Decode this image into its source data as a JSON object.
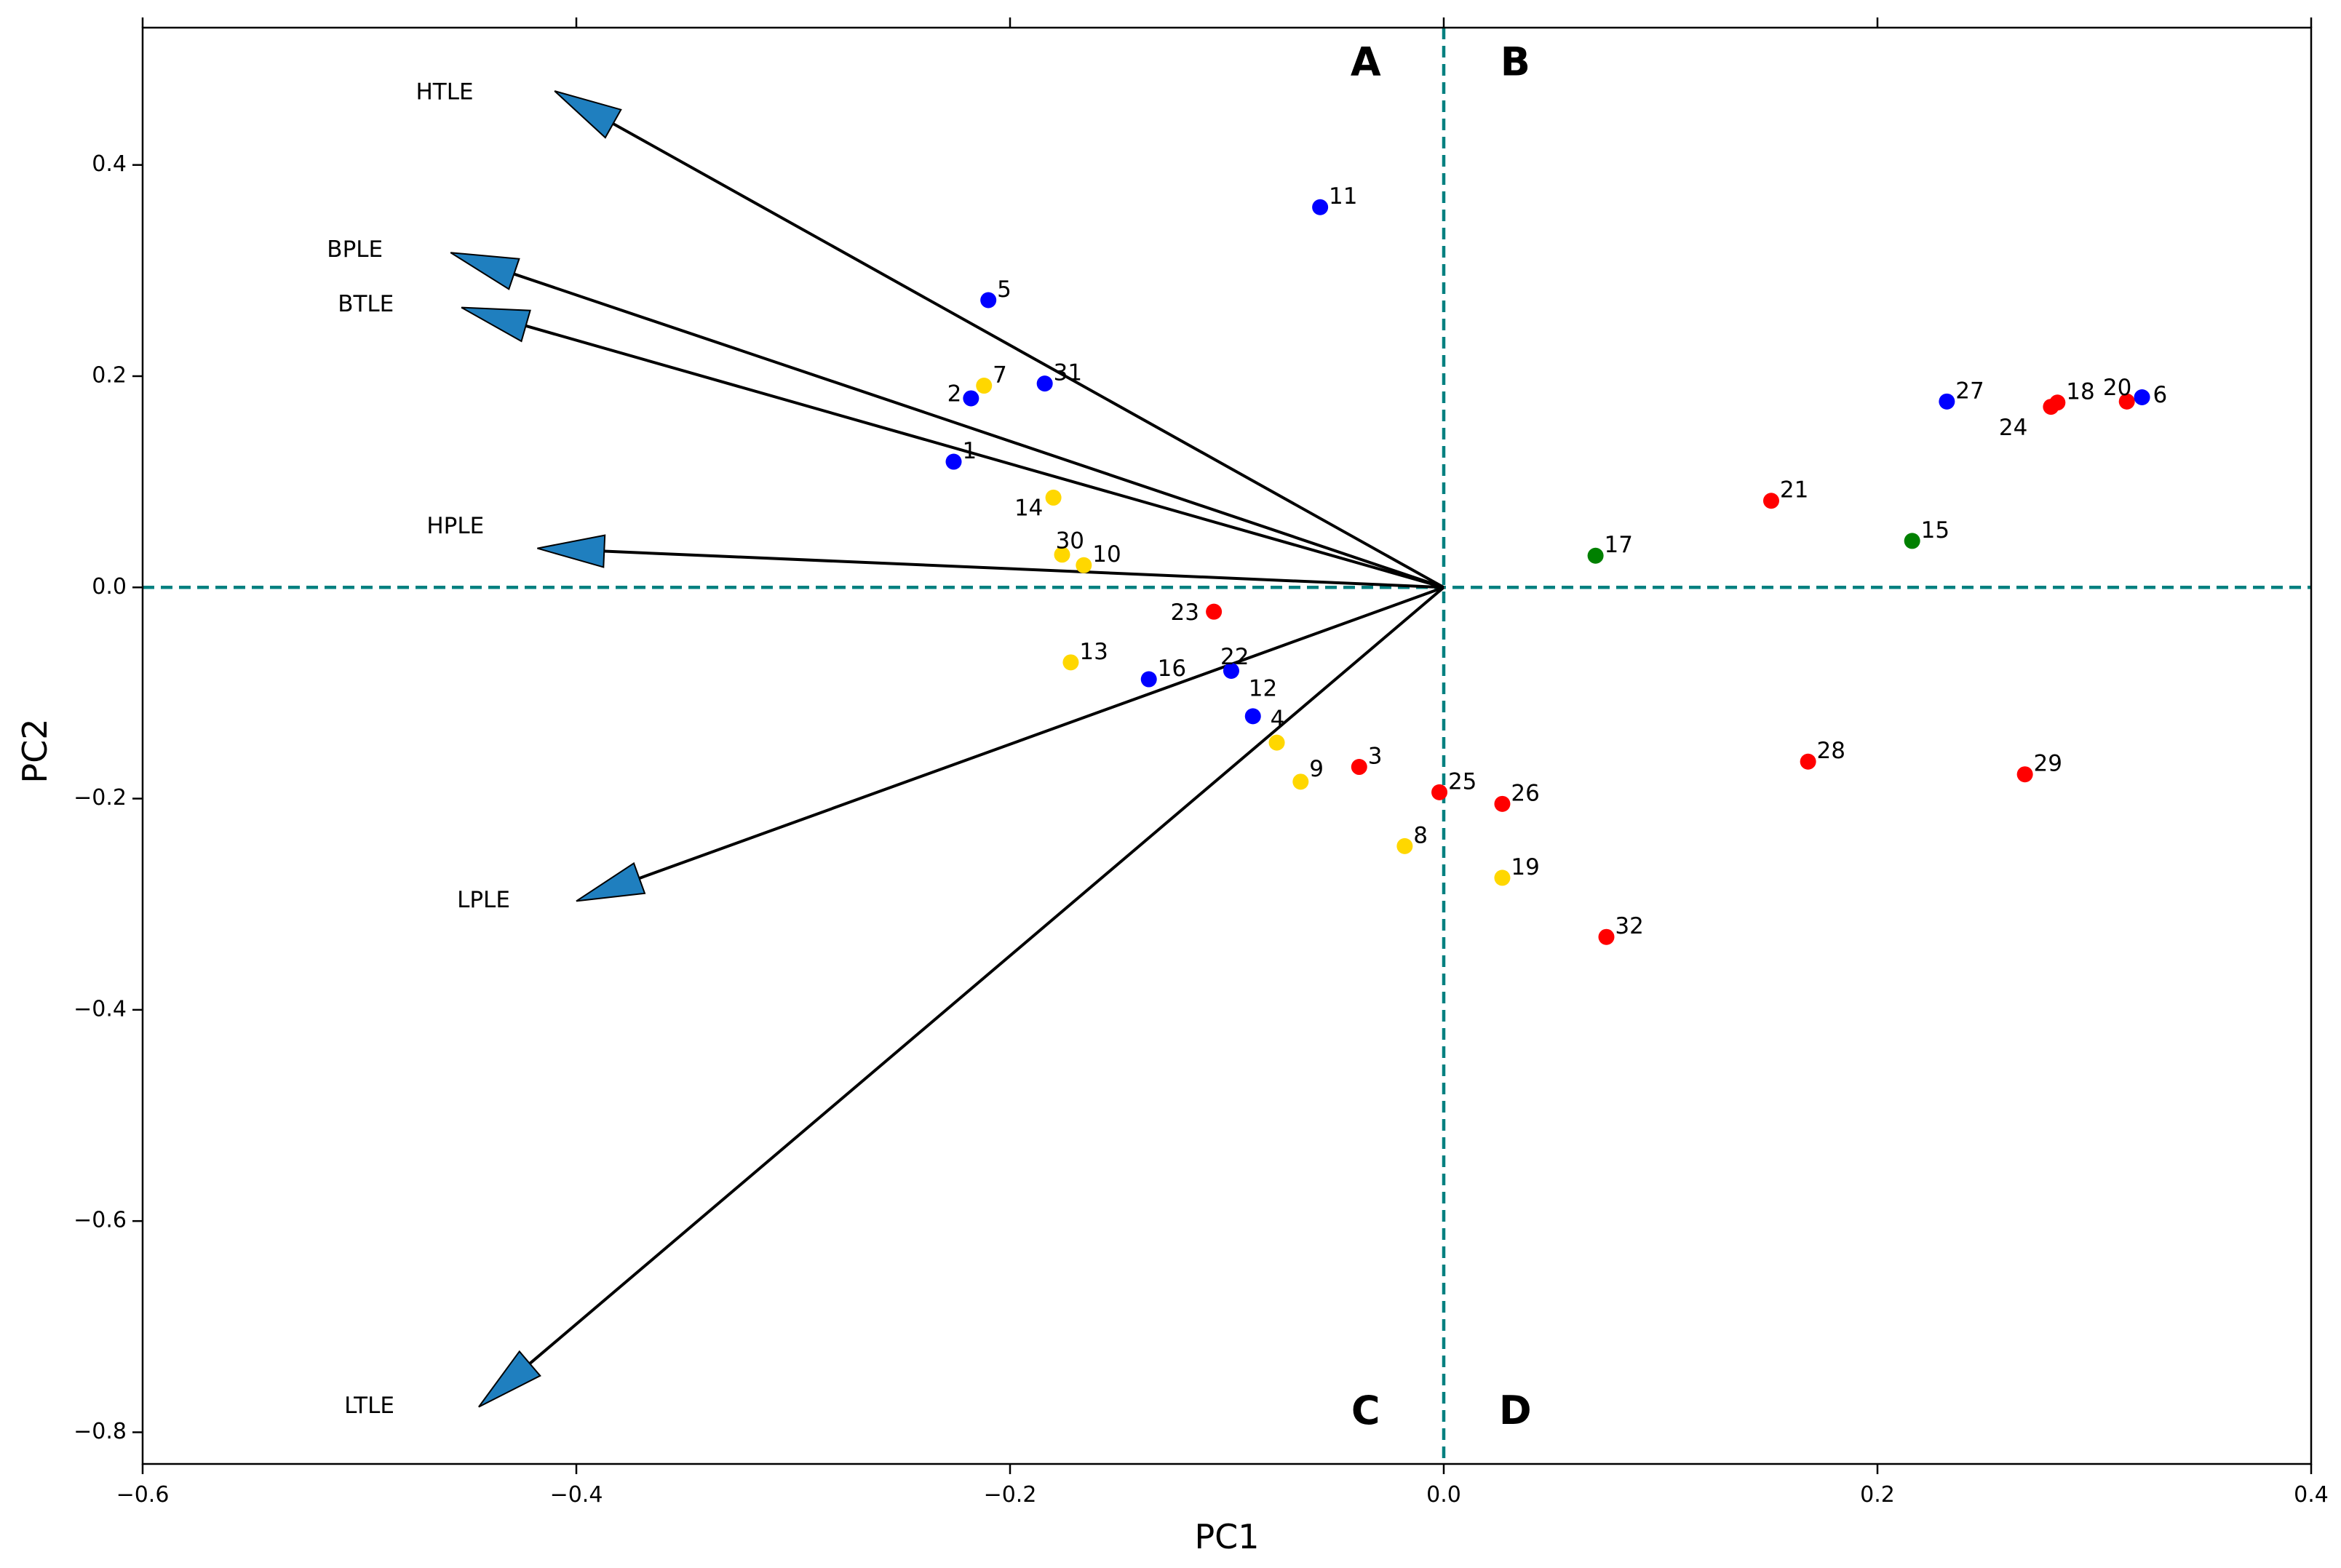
{
  "chart_data": {
    "type": "scatter",
    "subtype": "pca-biplot",
    "title": "",
    "xlabel": "PC1",
    "ylabel": "PC2",
    "xlim": [
      -0.6,
      0.4
    ],
    "ylim": [
      -0.83,
      0.53
    ],
    "xticks": [
      -0.6,
      -0.4,
      -0.2,
      0.0,
      0.2,
      0.4
    ],
    "xtick_labels": [
      "−0.6",
      "−0.4",
      "−0.2",
      "0.0",
      "0.2",
      "0.4"
    ],
    "yticks": [
      0.4,
      0.2,
      0.0,
      -0.2,
      -0.4,
      -0.6,
      -0.8
    ],
    "ytick_labels": [
      "0.4",
      "0.2",
      "0.0",
      "−0.2",
      "−0.4",
      "−0.6",
      "−0.8"
    ],
    "reference_lines": {
      "x": 0.0,
      "y": 0.0,
      "color": "#008080",
      "style": "dashed"
    },
    "quadrants": [
      {
        "label": "A",
        "x": -0.036,
        "y": 0.495
      },
      {
        "label": "B",
        "x": 0.033,
        "y": 0.495
      },
      {
        "label": "C",
        "x": -0.036,
        "y": -0.782
      },
      {
        "label": "D",
        "x": 0.033,
        "y": -0.782
      }
    ],
    "arrow_color": "#1f7fbf",
    "vectors": [
      {
        "name": "HTLE",
        "x": -0.41,
        "y": 0.47,
        "label_x": -0.474,
        "label_y": 0.468
      },
      {
        "name": "BPLE",
        "x": -0.458,
        "y": 0.317,
        "label_x": -0.515,
        "label_y": 0.319
      },
      {
        "name": "BTLE",
        "x": -0.453,
        "y": 0.265,
        "label_x": -0.51,
        "label_y": 0.267
      },
      {
        "name": "HPLE",
        "x": -0.418,
        "y": 0.037,
        "label_x": -0.469,
        "label_y": 0.057
      },
      {
        "name": "LPLE",
        "x": -0.4,
        "y": -0.297,
        "label_x": -0.455,
        "label_y": -0.297
      },
      {
        "name": "LTLE",
        "x": -0.445,
        "y": -0.776,
        "label_x": -0.507,
        "label_y": -0.776
      }
    ],
    "group_colors": {
      "blue": "#0000ff",
      "yellow": "#ffd700",
      "red": "#ff0000",
      "green": "#008000"
    },
    "points": [
      {
        "id": "1",
        "x": -0.226,
        "y": 0.119,
        "group": "blue",
        "lx": 0.004,
        "ly": 0.009
      },
      {
        "id": "2",
        "x": -0.218,
        "y": 0.179,
        "group": "blue",
        "lx": -0.011,
        "ly": 0.003
      },
      {
        "id": "5",
        "x": -0.21,
        "y": 0.272,
        "group": "blue",
        "lx": 0.004,
        "ly": 0.009
      },
      {
        "id": "7",
        "x": -0.212,
        "y": 0.191,
        "group": "yellow",
        "lx": 0.004,
        "ly": 0.009
      },
      {
        "id": "31",
        "x": -0.184,
        "y": 0.193,
        "group": "blue",
        "lx": 0.004,
        "ly": 0.009
      },
      {
        "id": "14",
        "x": -0.18,
        "y": 0.085,
        "group": "yellow",
        "lx": -0.018,
        "ly": -0.011
      },
      {
        "id": "11",
        "x": -0.057,
        "y": 0.36,
        "group": "blue",
        "lx": 0.004,
        "ly": 0.009
      },
      {
        "id": "30",
        "x": -0.176,
        "y": 0.031,
        "group": "yellow",
        "lx": -0.003,
        "ly": 0.012
      },
      {
        "id": "10",
        "x": -0.166,
        "y": 0.021,
        "group": "yellow",
        "lx": 0.004,
        "ly": 0.009
      },
      {
        "id": "23",
        "x": -0.106,
        "y": -0.023,
        "group": "red",
        "lx": -0.02,
        "ly": -0.002
      },
      {
        "id": "13",
        "x": -0.172,
        "y": -0.071,
        "group": "yellow",
        "lx": 0.004,
        "ly": 0.009
      },
      {
        "id": "16",
        "x": -0.136,
        "y": -0.087,
        "group": "blue",
        "lx": 0.004,
        "ly": 0.009
      },
      {
        "id": "22",
        "x": -0.098,
        "y": -0.079,
        "group": "blue",
        "lx": -0.005,
        "ly": 0.012
      },
      {
        "id": "12",
        "x": -0.088,
        "y": -0.122,
        "group": "blue",
        "lx": -0.002,
        "ly": 0.025
      },
      {
        "id": "4",
        "x": -0.077,
        "y": -0.147,
        "group": "yellow",
        "lx": -0.003,
        "ly": 0.021
      },
      {
        "id": "9",
        "x": -0.066,
        "y": -0.184,
        "group": "yellow",
        "lx": 0.004,
        "ly": 0.011
      },
      {
        "id": "3",
        "x": -0.039,
        "y": -0.17,
        "group": "red",
        "lx": 0.004,
        "ly": 0.009
      },
      {
        "id": "8",
        "x": -0.018,
        "y": -0.245,
        "group": "yellow",
        "lx": 0.004,
        "ly": 0.009
      },
      {
        "id": "25",
        "x": -0.002,
        "y": -0.194,
        "group": "red",
        "lx": 0.004,
        "ly": 0.009
      },
      {
        "id": "26",
        "x": 0.027,
        "y": -0.205,
        "group": "red",
        "lx": 0.004,
        "ly": 0.009
      },
      {
        "id": "19",
        "x": 0.027,
        "y": -0.275,
        "group": "yellow",
        "lx": 0.004,
        "ly": 0.009
      },
      {
        "id": "32",
        "x": 0.075,
        "y": -0.331,
        "group": "red",
        "lx": 0.004,
        "ly": 0.009
      },
      {
        "id": "17",
        "x": 0.07,
        "y": 0.03,
        "group": "green",
        "lx": 0.004,
        "ly": 0.009
      },
      {
        "id": "21",
        "x": 0.151,
        "y": 0.082,
        "group": "red",
        "lx": 0.004,
        "ly": 0.009
      },
      {
        "id": "15",
        "x": 0.216,
        "y": 0.044,
        "group": "green",
        "lx": 0.004,
        "ly": 0.009
      },
      {
        "id": "28",
        "x": 0.168,
        "y": -0.165,
        "group": "red",
        "lx": 0.004,
        "ly": 0.009
      },
      {
        "id": "29",
        "x": 0.268,
        "y": -0.177,
        "group": "red",
        "lx": 0.004,
        "ly": 0.009
      },
      {
        "id": "27",
        "x": 0.232,
        "y": 0.176,
        "group": "blue",
        "lx": 0.004,
        "ly": 0.009
      },
      {
        "id": "24",
        "x": 0.28,
        "y": 0.171,
        "group": "red",
        "lx": -0.024,
        "ly": -0.021
      },
      {
        "id": "18",
        "x": 0.283,
        "y": 0.175,
        "group": "red",
        "lx": 0.004,
        "ly": 0.009
      },
      {
        "id": "20",
        "x": 0.315,
        "y": 0.176,
        "group": "red",
        "lx": -0.011,
        "ly": 0.012
      },
      {
        "id": "6",
        "x": 0.322,
        "y": 0.18,
        "group": "blue",
        "lx": 0.005,
        "ly": 0.001
      }
    ]
  }
}
